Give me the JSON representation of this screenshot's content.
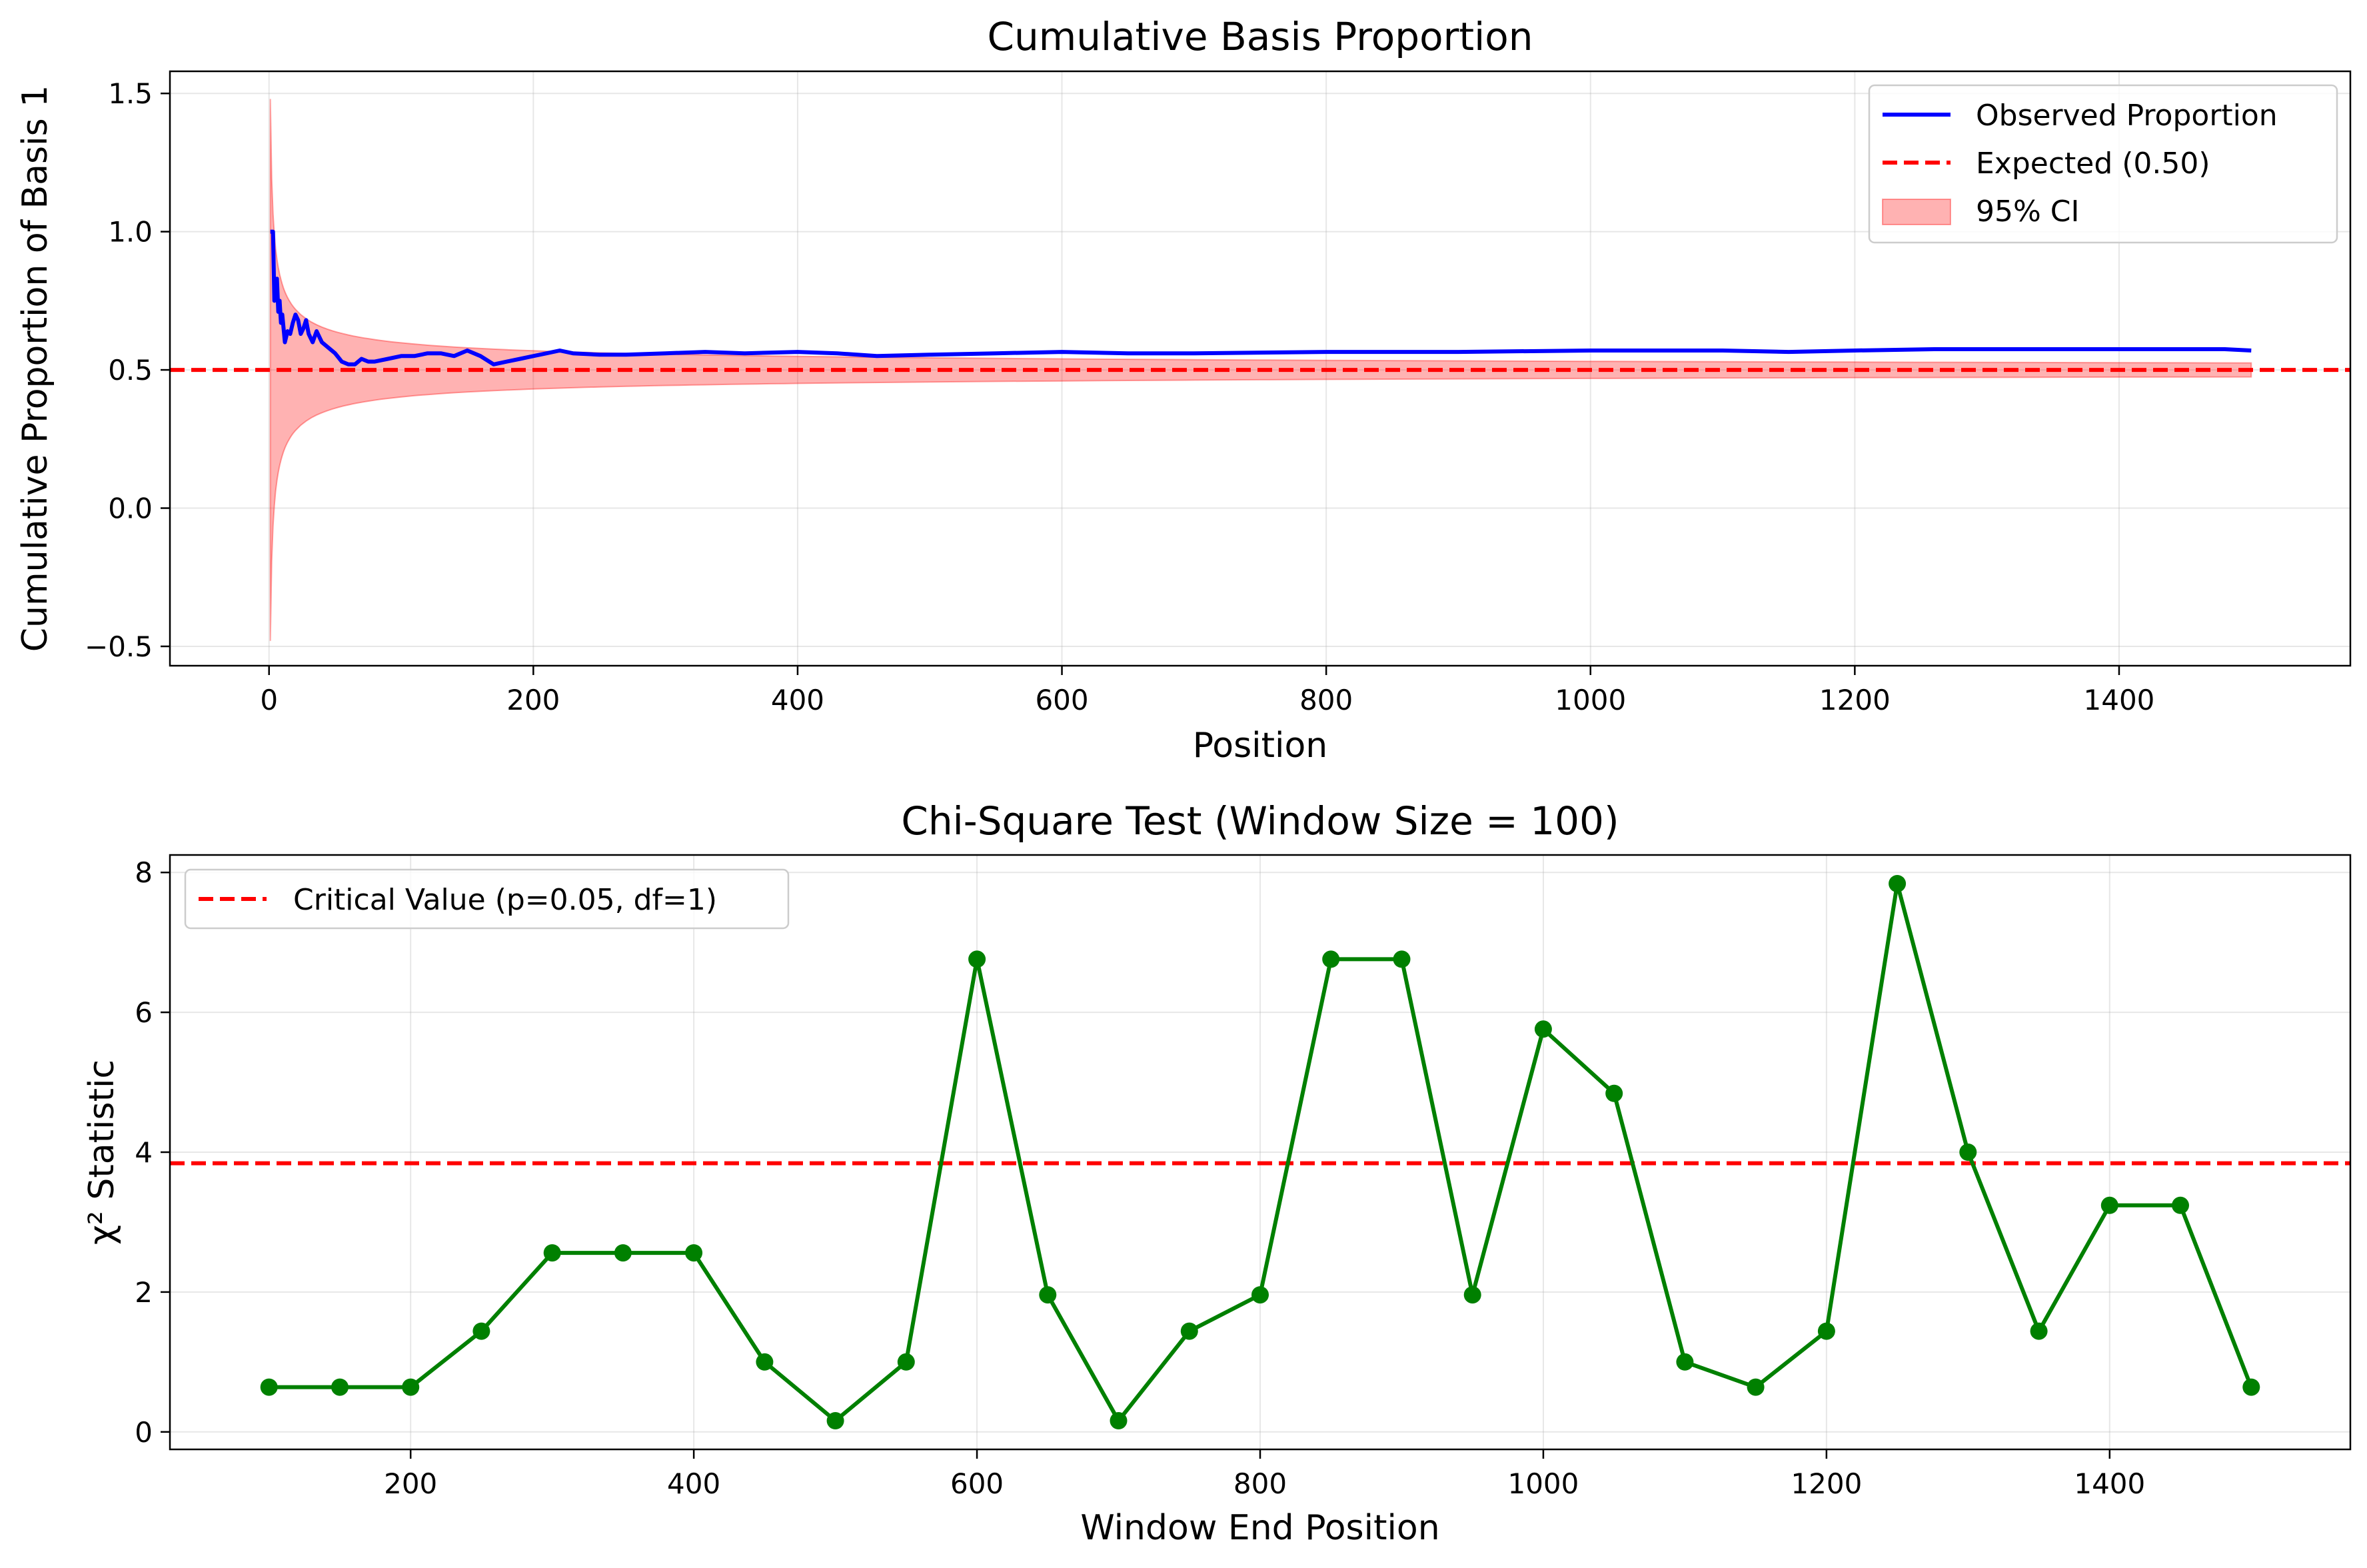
{
  "chart_data": [
    {
      "type": "line",
      "title": "Cumulative Basis Proportion",
      "xlabel": "Position",
      "ylabel": "Cumulative Proportion of Basis 1",
      "xlim": [
        -75,
        1575
      ],
      "ylim": [
        -0.57,
        1.58
      ],
      "xticks": [
        0,
        200,
        400,
        600,
        800,
        1000,
        1200,
        1400
      ],
      "yticks": [
        -0.5,
        0.0,
        0.5,
        1.0,
        1.5
      ],
      "ytick_labels": [
        "−0.5",
        "0.0",
        "0.5",
        "1.0",
        "1.5"
      ],
      "grid": true,
      "legend_position": "upper right",
      "expected_value": 0.5,
      "series": [
        {
          "name": "Observed Proportion",
          "color": "#0000ff",
          "x": [
            1,
            2,
            3,
            4,
            5,
            6,
            7,
            8,
            9,
            10,
            12,
            14,
            16,
            18,
            20,
            22,
            24,
            26,
            28,
            30,
            33,
            36,
            40,
            45,
            50,
            55,
            60,
            65,
            70,
            75,
            80,
            90,
            100,
            110,
            120,
            130,
            140,
            150,
            160,
            170,
            180,
            190,
            200,
            210,
            220,
            230,
            250,
            270,
            300,
            330,
            360,
            400,
            430,
            460,
            500,
            550,
            600,
            650,
            700,
            800,
            900,
            1000,
            1050,
            1100,
            1150,
            1200,
            1260,
            1300,
            1350,
            1400,
            1450,
            1480,
            1500
          ],
          "y": [
            1.0,
            1.0,
            1.0,
            0.75,
            0.8,
            0.83,
            0.71,
            0.75,
            0.67,
            0.7,
            0.6,
            0.64,
            0.63,
            0.67,
            0.7,
            0.68,
            0.63,
            0.65,
            0.68,
            0.63,
            0.6,
            0.64,
            0.6,
            0.58,
            0.56,
            0.53,
            0.52,
            0.52,
            0.54,
            0.53,
            0.53,
            0.54,
            0.55,
            0.55,
            0.56,
            0.56,
            0.55,
            0.57,
            0.55,
            0.52,
            0.53,
            0.54,
            0.55,
            0.56,
            0.57,
            0.56,
            0.555,
            0.555,
            0.56,
            0.565,
            0.56,
            0.565,
            0.56,
            0.55,
            0.555,
            0.56,
            0.565,
            0.56,
            0.56,
            0.565,
            0.565,
            0.57,
            0.57,
            0.57,
            0.565,
            0.57,
            0.575,
            0.575,
            0.575,
            0.575,
            0.575,
            0.575,
            0.57
          ]
        },
        {
          "name": "Expected (0.50)",
          "color": "#ff0000",
          "style": "dashed",
          "y": 0.5
        },
        {
          "name": "95% CI",
          "color": "#ff9999",
          "type": "band",
          "formula": "0.5 ± 1.96·√(0.25/n)",
          "x_range": [
            1,
            1500
          ]
        }
      ]
    },
    {
      "type": "line",
      "title": "Chi-Square Test (Window Size = 100)",
      "xlabel": "Window End Position",
      "ylabel": "χ² Statistic",
      "xlim": [
        30,
        1570
      ],
      "ylim": [
        -0.25,
        8.25
      ],
      "xticks": [
        200,
        400,
        600,
        800,
        1000,
        1200,
        1400
      ],
      "yticks": [
        0,
        2,
        4,
        6,
        8
      ],
      "grid": true,
      "legend_position": "upper left",
      "series": [
        {
          "name": "",
          "color": "#008000",
          "marker": "circle",
          "x": [
            100,
            150,
            200,
            250,
            300,
            350,
            400,
            450,
            500,
            550,
            600,
            650,
            700,
            750,
            800,
            850,
            900,
            950,
            1000,
            1050,
            1100,
            1150,
            1200,
            1250,
            1300,
            1350,
            1400,
            1450,
            1500
          ],
          "y": [
            0.64,
            0.64,
            0.64,
            1.44,
            2.56,
            2.56,
            2.56,
            1.0,
            0.16,
            1.0,
            6.76,
            1.96,
            0.16,
            1.44,
            1.96,
            6.76,
            6.76,
            1.96,
            5.76,
            4.84,
            1.0,
            0.64,
            1.44,
            7.84,
            4.0,
            1.44,
            3.24,
            3.24,
            0.64
          ]
        },
        {
          "name": "Critical Value (p=0.05, df=1)",
          "color": "#ff0000",
          "style": "dashed",
          "y": 3.841
        }
      ]
    }
  ]
}
